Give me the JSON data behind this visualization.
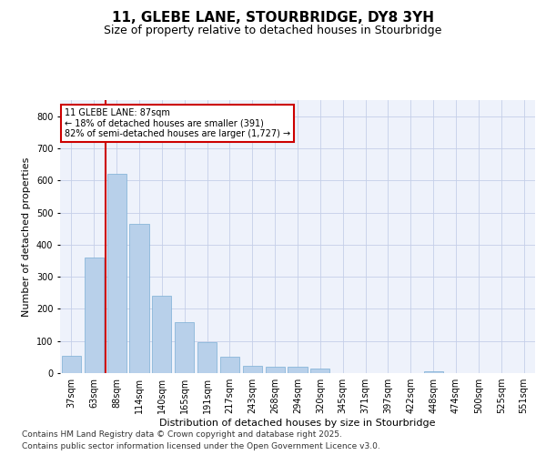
{
  "title_line1": "11, GLEBE LANE, STOURBRIDGE, DY8 3YH",
  "title_line2": "Size of property relative to detached houses in Stourbridge",
  "xlabel": "Distribution of detached houses by size in Stourbridge",
  "ylabel": "Number of detached properties",
  "categories": [
    "37sqm",
    "63sqm",
    "88sqm",
    "114sqm",
    "140sqm",
    "165sqm",
    "191sqm",
    "217sqm",
    "243sqm",
    "268sqm",
    "294sqm",
    "320sqm",
    "345sqm",
    "371sqm",
    "397sqm",
    "422sqm",
    "448sqm",
    "474sqm",
    "500sqm",
    "525sqm",
    "551sqm"
  ],
  "values": [
    55,
    360,
    620,
    465,
    240,
    160,
    97,
    50,
    23,
    20,
    20,
    14,
    0,
    0,
    0,
    0,
    5,
    0,
    0,
    0,
    0
  ],
  "bar_color": "#b8d0ea",
  "bar_edge_color": "#7bafd4",
  "background_color": "#eef2fb",
  "grid_color": "#c5cfe8",
  "vline_color": "#cc0000",
  "annotation_text": "11 GLEBE LANE: 87sqm\n← 18% of detached houses are smaller (391)\n82% of semi-detached houses are larger (1,727) →",
  "annotation_box_color": "#ffffff",
  "annotation_box_edge": "#cc0000",
  "ylim": [
    0,
    850
  ],
  "yticks": [
    0,
    100,
    200,
    300,
    400,
    500,
    600,
    700,
    800
  ],
  "footer_line1": "Contains HM Land Registry data © Crown copyright and database right 2025.",
  "footer_line2": "Contains public sector information licensed under the Open Government Licence v3.0.",
  "title_fontsize": 11,
  "subtitle_fontsize": 9,
  "tick_fontsize": 7,
  "axis_label_fontsize": 8,
  "footer_fontsize": 6.5
}
